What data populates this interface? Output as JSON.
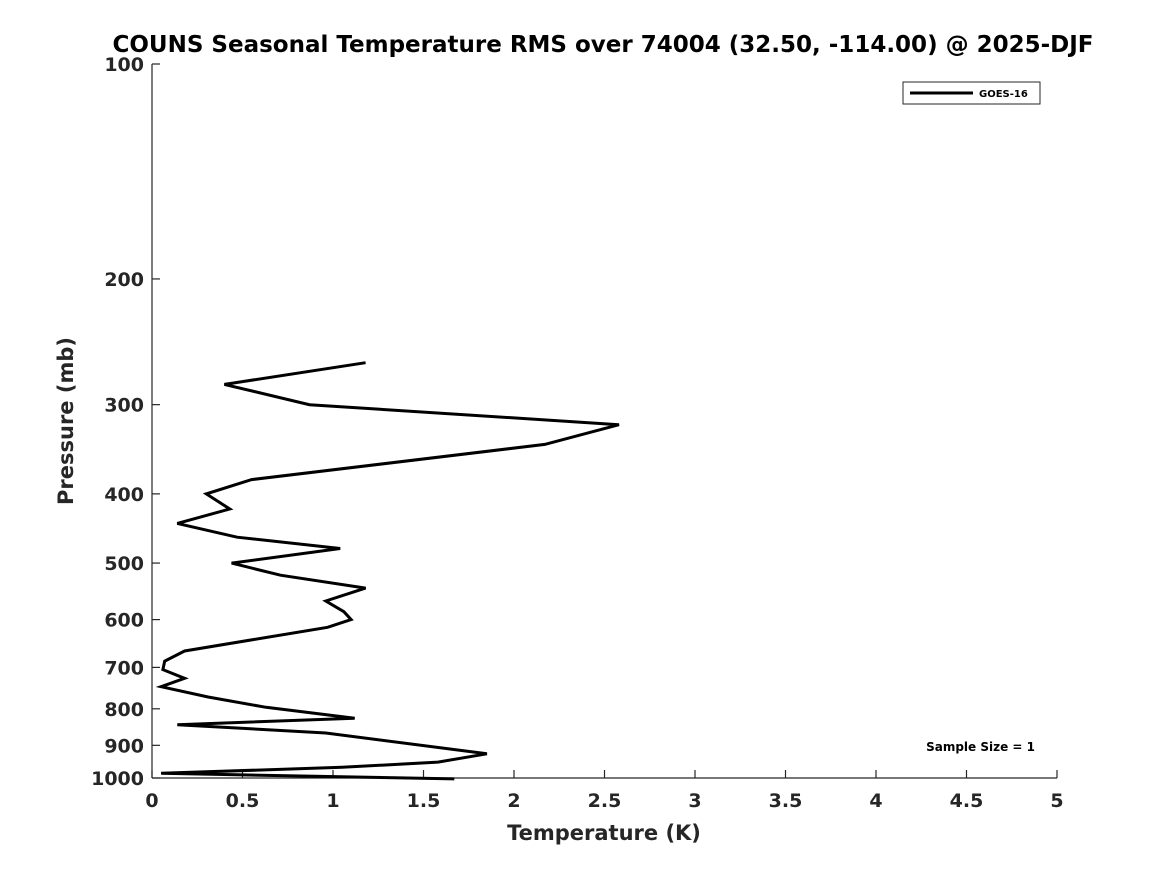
{
  "chart_data": {
    "type": "line",
    "title": "COUNS Seasonal Temperature RMS over 74004 (32.50, -114.00) @ 2025-DJF",
    "xlabel": "Temperature (K)",
    "ylabel": "Pressure (mb)",
    "xlim": [
      0,
      5
    ],
    "ylim": [
      1000,
      100
    ],
    "yscale": "log",
    "x_ticks": [
      0,
      0.5,
      1,
      1.5,
      2,
      2.5,
      3,
      3.5,
      4,
      4.5,
      5
    ],
    "x_tick_labels": [
      "0",
      "0.5",
      "1",
      "1.5",
      "2",
      "2.5",
      "3",
      "3.5",
      "4",
      "4.5",
      "5"
    ],
    "y_ticks": [
      100,
      200,
      300,
      400,
      500,
      600,
      700,
      800,
      900,
      1000
    ],
    "y_tick_labels": [
      "100",
      "200",
      "300",
      "400",
      "500",
      "600",
      "700",
      "800",
      "900",
      "1000"
    ],
    "grid": false,
    "legend_position": "top-right",
    "series": [
      {
        "name": "GOES-16",
        "color": "#000000",
        "points": [
          {
            "t": 1.18,
            "p": 262
          },
          {
            "t": 0.4,
            "p": 281
          },
          {
            "t": 0.87,
            "p": 300
          },
          {
            "t": 2.58,
            "p": 320
          },
          {
            "t": 2.17,
            "p": 341
          },
          {
            "t": 0.55,
            "p": 382
          },
          {
            "t": 0.3,
            "p": 400
          },
          {
            "t": 0.43,
            "p": 420
          },
          {
            "t": 0.14,
            "p": 440
          },
          {
            "t": 0.47,
            "p": 460
          },
          {
            "t": 1.04,
            "p": 477
          },
          {
            "t": 0.44,
            "p": 500
          },
          {
            "t": 0.71,
            "p": 520
          },
          {
            "t": 1.18,
            "p": 542
          },
          {
            "t": 0.96,
            "p": 565
          },
          {
            "t": 1.06,
            "p": 585
          },
          {
            "t": 1.1,
            "p": 600
          },
          {
            "t": 0.97,
            "p": 615
          },
          {
            "t": 0.18,
            "p": 664
          },
          {
            "t": 0.07,
            "p": 686
          },
          {
            "t": 0.06,
            "p": 705
          },
          {
            "t": 0.18,
            "p": 725
          },
          {
            "t": 0.05,
            "p": 745
          },
          {
            "t": 0.31,
            "p": 770
          },
          {
            "t": 0.63,
            "p": 796
          },
          {
            "t": 1.12,
            "p": 825
          },
          {
            "t": 0.14,
            "p": 842
          },
          {
            "t": 0.96,
            "p": 865
          },
          {
            "t": 1.85,
            "p": 925
          },
          {
            "t": 1.58,
            "p": 950
          },
          {
            "t": 1.05,
            "p": 966
          },
          {
            "t": 0.05,
            "p": 985
          },
          {
            "t": 1.67,
            "p": 1003
          }
        ]
      }
    ],
    "annotations": [
      {
        "text": "Sample Size = 1",
        "position": "bottom-right"
      }
    ]
  }
}
